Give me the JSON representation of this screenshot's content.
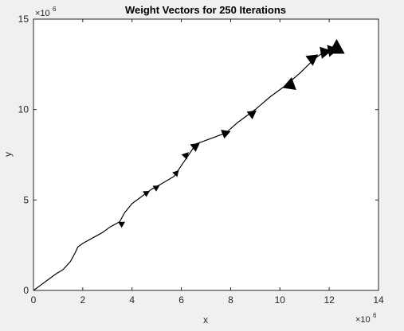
{
  "chart_data": {
    "type": "line",
    "title": "Weight Vectors for 250 Iterations",
    "xlabel": "x",
    "ylabel": "y",
    "x_exponent_base": "×10",
    "x_exponent_power": "6",
    "y_exponent_base": "×10",
    "y_exponent_power": "6",
    "xlim": [
      0,
      14
    ],
    "ylim": [
      0,
      15
    ],
    "xticks": [
      0,
      2,
      4,
      6,
      8,
      10,
      12,
      14
    ],
    "xtick_labels": [
      "0",
      "2",
      "4",
      "6",
      "8",
      "10",
      "12",
      "14"
    ],
    "yticks": [
      0,
      5,
      10,
      15
    ],
    "ytick_labels": [
      "0",
      "5",
      "10",
      "15"
    ],
    "grid": false,
    "series": [
      {
        "x": [
          0,
          0.3,
          0.6,
          0.9,
          1.2,
          1.5,
          1.7,
          1.8,
          2.0,
          2.4,
          2.8,
          3.1,
          3.5,
          3.7,
          4.0,
          4.4,
          4.8,
          5.2,
          5.7,
          5.9,
          6.2,
          6.6,
          7.0,
          7.8,
          8.3,
          9.0,
          9.6,
          10.2,
          10.8,
          11.4,
          11.8,
          12.3
        ],
        "y": [
          0,
          0.3,
          0.6,
          0.9,
          1.15,
          1.6,
          2.1,
          2.4,
          2.6,
          2.9,
          3.2,
          3.5,
          3.8,
          4.3,
          4.8,
          5.2,
          5.6,
          5.9,
          6.3,
          6.7,
          7.3,
          8.1,
          8.3,
          8.7,
          9.3,
          10.0,
          10.7,
          11.3,
          12.0,
          12.8,
          13.2,
          13.3
        ]
      }
    ],
    "arrows": [
      {
        "x": 3.6,
        "y": 3.7,
        "dx": 0.12,
        "dy": 0.1,
        "size": 0.5
      },
      {
        "x": 4.6,
        "y": 5.4,
        "dx": 0.12,
        "dy": 0.1,
        "size": 0.5
      },
      {
        "x": 5.0,
        "y": 5.7,
        "dx": 0.12,
        "dy": 0.1,
        "size": 0.5
      },
      {
        "x": 5.8,
        "y": 6.5,
        "dx": 0.1,
        "dy": 0.15,
        "size": 0.5
      },
      {
        "x": 6.2,
        "y": 7.5,
        "dx": 0.1,
        "dy": 0.15,
        "size": 0.55
      },
      {
        "x": 6.6,
        "y": 8.0,
        "dx": 0.15,
        "dy": 0.15,
        "size": 0.7
      },
      {
        "x": 7.8,
        "y": 8.7,
        "dx": 0.2,
        "dy": 0.1,
        "size": 0.7
      },
      {
        "x": 8.9,
        "y": 9.8,
        "dx": 0.15,
        "dy": 0.15,
        "size": 0.7
      },
      {
        "x": 10.3,
        "y": 11.3,
        "dx": -0.2,
        "dy": -0.1,
        "size": 1.0
      },
      {
        "x": 11.4,
        "y": 12.9,
        "dx": 0.15,
        "dy": 0.15,
        "size": 0.9
      },
      {
        "x": 11.9,
        "y": 13.2,
        "dx": 0.2,
        "dy": 0.05,
        "size": 0.9
      },
      {
        "x": 12.2,
        "y": 13.3,
        "dx": 0.2,
        "dy": 0.05,
        "size": 0.9
      },
      {
        "x": 12.3,
        "y": 13.5,
        "dx": 0.0,
        "dy": 0.4,
        "size": 1.2
      }
    ]
  }
}
